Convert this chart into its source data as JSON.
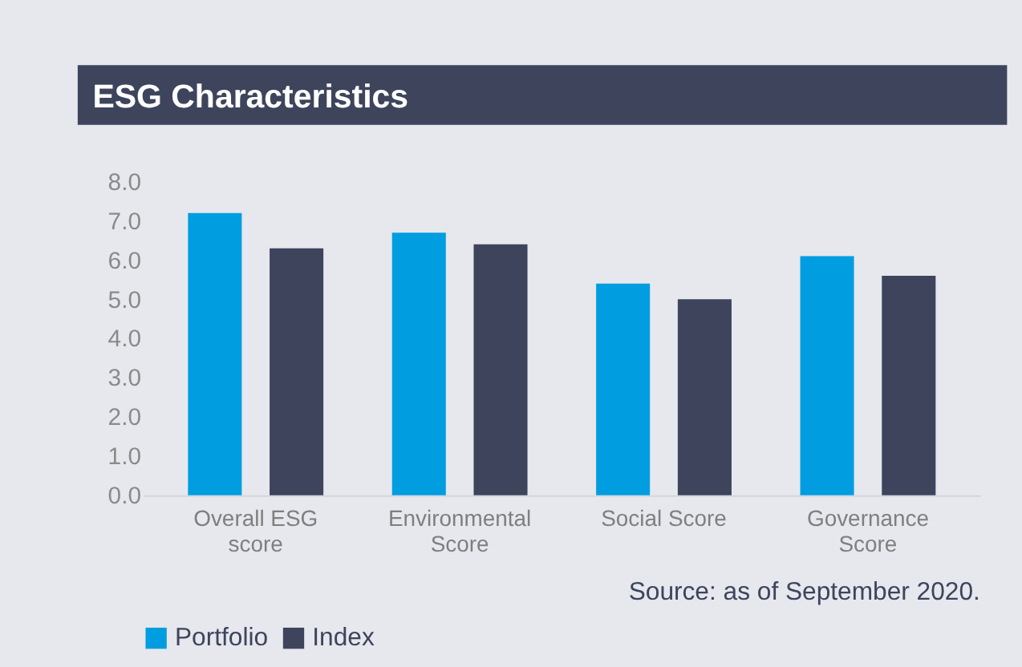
{
  "chart_data": {
    "type": "bar",
    "title": "ESG Characteristics",
    "categories": [
      "Overall ESG score",
      "Environmental Score",
      "Social Score",
      "Governance Score"
    ],
    "series": [
      {
        "name": "Portfolio",
        "color": "#009de0",
        "values": [
          7.2,
          6.7,
          5.4,
          6.1
        ]
      },
      {
        "name": "Index",
        "color": "#3d445c",
        "values": [
          6.3,
          6.4,
          5.0,
          5.6
        ]
      }
    ],
    "ylim": [
      0,
      8
    ],
    "yticks": [
      {
        "value": 0,
        "label": "0.0"
      },
      {
        "value": 1,
        "label": "1.0"
      },
      {
        "value": 2,
        "label": "2.0"
      },
      {
        "value": 3,
        "label": "3.0"
      },
      {
        "value": 4,
        "label": "4.0"
      },
      {
        "value": 5,
        "label": "5.0"
      },
      {
        "value": 6,
        "label": "6.0"
      },
      {
        "value": 7,
        "label": "7.0"
      },
      {
        "value": 8,
        "label": "8.0"
      }
    ],
    "grid": false,
    "legend": "bottom left",
    "annotations": [
      "Source: as of September 2020."
    ]
  }
}
